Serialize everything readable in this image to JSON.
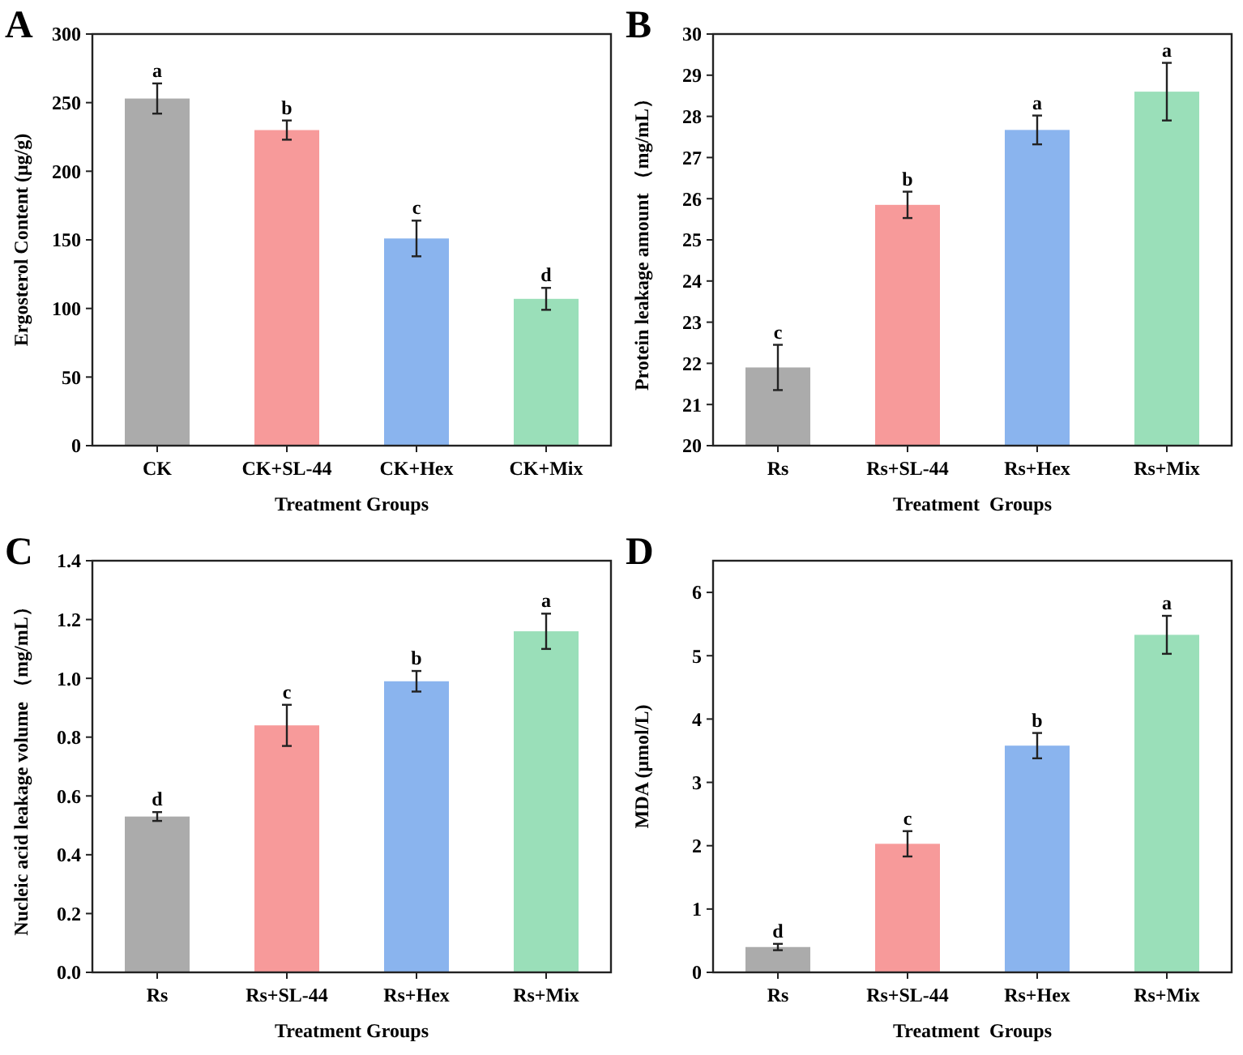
{
  "chart_data": [
    {
      "type": "bar",
      "title": "A",
      "xlabel": "Treatment Groups",
      "ylabel": "Ergosterol Content (μg/g)",
      "categories": [
        "CK",
        "CK+SL-44",
        "CK+Hex",
        "CK+Mix"
      ],
      "values": [
        253,
        230,
        151,
        107
      ],
      "errors": [
        11,
        7,
        13,
        8
      ],
      "colors": [
        "#ababab",
        "#f79a9a",
        "#8ab4ee",
        "#9adfb9"
      ],
      "ylim": [
        0,
        300
      ],
      "yticks": [
        0,
        50,
        100,
        150,
        200,
        250,
        300
      ],
      "grid": false,
      "annotations": [
        {
          "text": "a",
          "x": "CK",
          "y": 264
        },
        {
          "text": "b",
          "x": "CK+SL-44",
          "y": 237
        },
        {
          "text": "c",
          "x": "CK+Hex",
          "y": 164
        },
        {
          "text": "d",
          "x": "CK+Mix",
          "y": 115
        }
      ]
    },
    {
      "type": "bar",
      "title": "B",
      "xlabel": "Treatment  Groups",
      "ylabel": "Protein leakage amount （mg/mL）",
      "categories": [
        "Rs",
        "Rs+SL-44",
        "Rs+Hex",
        "Rs+Mix"
      ],
      "values": [
        21.9,
        25.85,
        27.67,
        28.6
      ],
      "errors": [
        0.55,
        0.32,
        0.35,
        0.7
      ],
      "colors": [
        "#ababab",
        "#f79a9a",
        "#8ab4ee",
        "#9adfb9"
      ],
      "ylim": [
        20,
        30
      ],
      "yticks": [
        20,
        21,
        22,
        23,
        24,
        25,
        26,
        27,
        28,
        29,
        30
      ],
      "grid": false,
      "annotations": [
        {
          "text": "c",
          "x": "Rs",
          "y": 22.45
        },
        {
          "text": "b",
          "x": "Rs+SL-44",
          "y": 26.17
        },
        {
          "text": "a",
          "x": "Rs+Hex",
          "y": 28.02
        },
        {
          "text": "a",
          "x": "Rs+Mix",
          "y": 29.3
        }
      ]
    },
    {
      "type": "bar",
      "title": "C",
      "xlabel": "Treatment Groups",
      "ylabel": "Nucleic acid leakage volume （mg/mL）",
      "categories": [
        "Rs",
        "Rs+SL-44",
        "Rs+Hex",
        "Rs+Mix"
      ],
      "values": [
        0.53,
        0.84,
        0.99,
        1.16
      ],
      "errors": [
        0.015,
        0.07,
        0.035,
        0.06
      ],
      "colors": [
        "#ababab",
        "#f79a9a",
        "#8ab4ee",
        "#9adfb9"
      ],
      "ylim": [
        0,
        1.4
      ],
      "yticks": [
        {
          "value": 0,
          "label": "0.0"
        },
        0.2,
        0.4,
        0.6,
        0.8,
        {
          "value": 1,
          "label": "1.0"
        },
        1.2,
        1.4
      ],
      "grid": false,
      "annotations": [
        {
          "text": "d",
          "x": "Rs",
          "y": 0.545
        },
        {
          "text": "c",
          "x": "Rs+SL-44",
          "y": 0.91
        },
        {
          "text": "b",
          "x": "Rs+Hex",
          "y": 1.025
        },
        {
          "text": "a",
          "x": "Rs+Mix",
          "y": 1.22
        }
      ]
    },
    {
      "type": "bar",
      "title": "D",
      "xlabel": "Treatment  Groups",
      "ylabel": "MDA (μmol/L)",
      "categories": [
        "Rs",
        "Rs+SL-44",
        "Rs+Hex",
        "Rs+Mix"
      ],
      "values": [
        0.4,
        2.03,
        3.58,
        5.33
      ],
      "errors": [
        0.05,
        0.2,
        0.2,
        0.3
      ],
      "colors": [
        "#ababab",
        "#f79a9a",
        "#8ab4ee",
        "#9adfb9"
      ],
      "ylim": [
        0,
        6.5
      ],
      "yticks": [
        0,
        1,
        2,
        3,
        4,
        5,
        6
      ],
      "grid": false,
      "annotations": [
        {
          "text": "d",
          "x": "Rs",
          "y": 0.45
        },
        {
          "text": "c",
          "x": "Rs+SL-44",
          "y": 2.23
        },
        {
          "text": "b",
          "x": "Rs+Hex",
          "y": 3.78
        },
        {
          "text": "a",
          "x": "Rs+Mix",
          "y": 5.63
        }
      ]
    }
  ]
}
